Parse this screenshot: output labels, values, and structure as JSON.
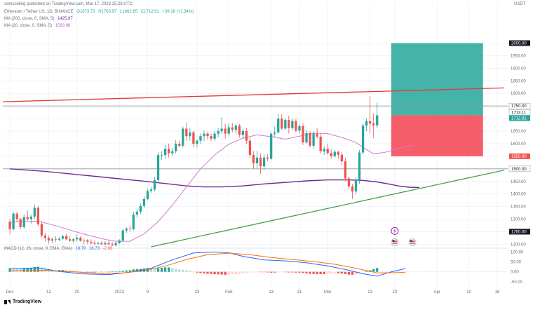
{
  "publisher": "samcooling published on TradingView.com, Mar 17, 2023 15:28 UTC",
  "symbol_line": {
    "symbol": "Ethereum / Tether US, 1D, BINANCE",
    "open": "O1673.73",
    "high": "H1763.97",
    "low": "L1662.65",
    "close": "C1712.91",
    "change": "+39.18 (+2.34%)"
  },
  "ma200_line": {
    "label": "MA (200, close, 0, SMA, 5)",
    "value": "1425.87"
  },
  "ma20_line": {
    "label": "MA (20, close, 0, SMA, 5)",
    "value": "1593.98"
  },
  "macd_line": {
    "label": "MACD (12, 26, close, 9, EMA, EMA)",
    "hist": "18.79",
    "macd": "16.73",
    "signal": "-2.06"
  },
  "currency": "USDT",
  "footer": "TradingView",
  "colors": {
    "up": "#26a69a",
    "down": "#ef5350",
    "ma200": "#6a2c91",
    "ma20": "#d17bd3",
    "macd": "#2962ff",
    "signal": "#ff6d00",
    "trend_red": "#e53935",
    "trend_green": "#43a047",
    "target_zone": "#26a69a",
    "stop_zone": "#f23645"
  },
  "chart_data": {
    "type": "candlestick",
    "series_name": "Ethereum / Tether US, 1D, BINANCE",
    "price_axis": {
      "ticks": [
        1200,
        1250,
        1300,
        1350,
        1400,
        1450,
        1500,
        1550,
        1600,
        1650,
        1700,
        1750,
        1800,
        1850,
        1900,
        1950,
        2000
      ],
      "tick_labels": [
        "1200.00",
        "1250.00",
        "1300.00",
        "1350.00",
        "1400.00",
        "1450.00",
        "1500.00",
        "1550.00",
        "1600.00",
        "1650.00",
        "1700.00",
        "1750.00",
        "1800.00",
        "1850.00",
        "1900.00",
        "1950.00",
        "2000.00"
      ],
      "range": [
        1190,
        2060
      ]
    },
    "time_axis": {
      "tick_labels": [
        "Dec",
        "12",
        "20",
        "2023",
        "9",
        "23",
        "Feb",
        "13",
        "21",
        "Mar",
        "13",
        "20",
        "Apr",
        "10",
        "18"
      ],
      "tick_days": [
        0,
        11,
        19,
        31,
        39,
        53,
        62,
        74,
        82,
        90,
        102,
        109,
        121,
        130,
        138
      ],
      "range_days": [
        -2,
        141
      ]
    },
    "price_labels": [
      {
        "value": 2000.0,
        "text": "2000.00",
        "style": "dark"
      },
      {
        "value": 1750.0,
        "text": "1750.00",
        "style": "light"
      },
      {
        "value": 1713.11,
        "text": "1713.11",
        "style": "light"
      },
      {
        "value": 1712.91,
        "text": "1712.91",
        "style": "up"
      },
      {
        "value": 1550.0,
        "text": "1550.00",
        "style": "down"
      },
      {
        "value": 1500.0,
        "text": "1500.00",
        "style": "light"
      },
      {
        "value": 1250.0,
        "text": "1250.00",
        "style": "dark"
      }
    ],
    "candles": [
      [
        1290,
        1300,
        1240,
        1260
      ],
      [
        1260,
        1330,
        1255,
        1322
      ],
      [
        1322,
        1330,
        1290,
        1300
      ],
      [
        1300,
        1305,
        1260,
        1268
      ],
      [
        1268,
        1318,
        1262,
        1308
      ],
      [
        1308,
        1335,
        1294,
        1300
      ],
      [
        1300,
        1318,
        1282,
        1310
      ],
      [
        1310,
        1358,
        1300,
        1345
      ],
      [
        1345,
        1352,
        1272,
        1280
      ],
      [
        1280,
        1290,
        1228,
        1235
      ],
      [
        1235,
        1245,
        1210,
        1225
      ],
      [
        1225,
        1232,
        1203,
        1215
      ],
      [
        1215,
        1228,
        1205,
        1220
      ],
      [
        1220,
        1232,
        1210,
        1218
      ],
      [
        1218,
        1228,
        1212,
        1222
      ],
      [
        1222,
        1238,
        1216,
        1232
      ],
      [
        1232,
        1240,
        1216,
        1220
      ],
      [
        1220,
        1232,
        1210,
        1214
      ],
      [
        1214,
        1225,
        1205,
        1220
      ],
      [
        1220,
        1240,
        1210,
        1226
      ],
      [
        1226,
        1232,
        1210,
        1214
      ],
      [
        1214,
        1222,
        1198,
        1216
      ],
      [
        1216,
        1222,
        1200,
        1210
      ],
      [
        1210,
        1220,
        1198,
        1205
      ],
      [
        1205,
        1215,
        1196,
        1202
      ],
      [
        1202,
        1210,
        1198,
        1204
      ],
      [
        1204,
        1212,
        1196,
        1200
      ],
      [
        1200,
        1212,
        1195,
        1205
      ],
      [
        1205,
        1215,
        1198,
        1200
      ],
      [
        1200,
        1210,
        1192,
        1196
      ],
      [
        1196,
        1210,
        1192,
        1205
      ],
      [
        1205,
        1220,
        1200,
        1215
      ],
      [
        1215,
        1262,
        1210,
        1255
      ],
      [
        1255,
        1268,
        1245,
        1262
      ],
      [
        1262,
        1275,
        1250,
        1260
      ],
      [
        1260,
        1330,
        1255,
        1318
      ],
      [
        1318,
        1340,
        1305,
        1330
      ],
      [
        1330,
        1362,
        1320,
        1352
      ],
      [
        1352,
        1390,
        1345,
        1380
      ],
      [
        1380,
        1420,
        1375,
        1412
      ],
      [
        1412,
        1428,
        1405,
        1418
      ],
      [
        1418,
        1468,
        1410,
        1455
      ],
      [
        1455,
        1565,
        1450,
        1555
      ],
      [
        1555,
        1570,
        1535,
        1555
      ],
      [
        1555,
        1595,
        1540,
        1580
      ],
      [
        1580,
        1600,
        1545,
        1562
      ],
      [
        1562,
        1582,
        1550,
        1570
      ],
      [
        1570,
        1615,
        1560,
        1600
      ],
      [
        1600,
        1612,
        1585,
        1592
      ],
      [
        1592,
        1668,
        1585,
        1660
      ],
      [
        1660,
        1685,
        1610,
        1630
      ],
      [
        1630,
        1662,
        1612,
        1645
      ],
      [
        1645,
        1652,
        1585,
        1600
      ],
      [
        1600,
        1618,
        1585,
        1612
      ],
      [
        1612,
        1640,
        1600,
        1630
      ],
      [
        1630,
        1652,
        1610,
        1640
      ],
      [
        1640,
        1648,
        1615,
        1630
      ],
      [
        1630,
        1640,
        1610,
        1620
      ],
      [
        1620,
        1650,
        1610,
        1640
      ],
      [
        1640,
        1662,
        1625,
        1650
      ],
      [
        1650,
        1705,
        1640,
        1660
      ],
      [
        1660,
        1678,
        1620,
        1640
      ],
      [
        1640,
        1680,
        1630,
        1665
      ],
      [
        1665,
        1682,
        1645,
        1655
      ],
      [
        1655,
        1680,
        1640,
        1672
      ],
      [
        1672,
        1678,
        1625,
        1635
      ],
      [
        1635,
        1660,
        1620,
        1650
      ],
      [
        1650,
        1662,
        1600,
        1612
      ],
      [
        1612,
        1625,
        1545,
        1555
      ],
      [
        1555,
        1570,
        1500,
        1522
      ],
      [
        1522,
        1572,
        1502,
        1545
      ],
      [
        1545,
        1562,
        1480,
        1510
      ],
      [
        1510,
        1560,
        1495,
        1545
      ],
      [
        1545,
        1560,
        1530,
        1540
      ],
      [
        1540,
        1648,
        1535,
        1640
      ],
      [
        1640,
        1668,
        1625,
        1645
      ],
      [
        1645,
        1720,
        1640,
        1700
      ],
      [
        1700,
        1718,
        1655,
        1660
      ],
      [
        1660,
        1702,
        1655,
        1695
      ],
      [
        1695,
        1712,
        1640,
        1662
      ],
      [
        1662,
        1700,
        1655,
        1690
      ],
      [
        1690,
        1698,
        1645,
        1652
      ],
      [
        1652,
        1678,
        1640,
        1670
      ],
      [
        1670,
        1680,
        1595,
        1605
      ],
      [
        1605,
        1655,
        1600,
        1642
      ],
      [
        1642,
        1650,
        1585,
        1592
      ],
      [
        1592,
        1650,
        1580,
        1640
      ],
      [
        1640,
        1662,
        1620,
        1628
      ],
      [
        1628,
        1642,
        1560,
        1570
      ],
      [
        1570,
        1590,
        1555,
        1580
      ],
      [
        1580,
        1600,
        1555,
        1563
      ],
      [
        1563,
        1578,
        1540,
        1550
      ],
      [
        1550,
        1575,
        1545,
        1568
      ],
      [
        1568,
        1572,
        1540,
        1556
      ],
      [
        1556,
        1568,
        1515,
        1530
      ],
      [
        1530,
        1545,
        1450,
        1462
      ],
      [
        1462,
        1470,
        1420,
        1430
      ],
      [
        1430,
        1440,
        1380,
        1410
      ],
      [
        1410,
        1465,
        1400,
        1455
      ],
      [
        1455,
        1575,
        1440,
        1565
      ],
      [
        1565,
        1680,
        1555,
        1672
      ],
      [
        1672,
        1700,
        1650,
        1690
      ],
      [
        1690,
        1790,
        1640,
        1680
      ],
      [
        1680,
        1720,
        1622,
        1673
      ],
      [
        1673,
        1764,
        1662,
        1713
      ]
    ],
    "ma200": {
      "name": "MA (200, close, 0, SMA, 5)",
      "points": [
        [
          0,
          1500
        ],
        [
          10,
          1490
        ],
        [
          20,
          1476
        ],
        [
          30,
          1462
        ],
        [
          38,
          1451
        ],
        [
          45,
          1440
        ],
        [
          50,
          1432
        ],
        [
          55,
          1428
        ],
        [
          60,
          1428
        ],
        [
          66,
          1432
        ],
        [
          72,
          1440
        ],
        [
          78,
          1446
        ],
        [
          84,
          1452
        ],
        [
          90,
          1456
        ],
        [
          96,
          1456
        ],
        [
          100,
          1454
        ],
        [
          104,
          1448
        ],
        [
          108,
          1438
        ],
        [
          110,
          1432
        ],
        [
          113,
          1427
        ],
        [
          116,
          1426
        ]
      ]
    },
    "ma20": {
      "name": "MA (20, close, 0, SMA, 5)",
      "points": [
        [
          0,
          1288
        ],
        [
          8,
          1292
        ],
        [
          14,
          1270
        ],
        [
          20,
          1244
        ],
        [
          26,
          1222
        ],
        [
          30,
          1212
        ],
        [
          34,
          1212
        ],
        [
          38,
          1242
        ],
        [
          42,
          1290
        ],
        [
          46,
          1355
        ],
        [
          50,
          1428
        ],
        [
          54,
          1500
        ],
        [
          58,
          1555
        ],
        [
          62,
          1598
        ],
        [
          66,
          1622
        ],
        [
          70,
          1635
        ],
        [
          74,
          1628
        ],
        [
          78,
          1618
        ],
        [
          82,
          1630
        ],
        [
          86,
          1642
        ],
        [
          90,
          1640
        ],
        [
          94,
          1625
        ],
        [
          98,
          1605
        ],
        [
          100,
          1585
        ],
        [
          103,
          1560
        ],
        [
          106,
          1565
        ],
        [
          110,
          1580
        ],
        [
          114,
          1594
        ]
      ]
    },
    "trendlines": [
      {
        "name": "resistance",
        "points": [
          [
            -2,
            1767
          ],
          [
            140,
            1822
          ]
        ]
      },
      {
        "name": "support",
        "points": [
          [
            40,
            1190
          ],
          [
            140,
            1495
          ]
        ]
      }
    ],
    "horizontal_lines": [
      1750,
      1500
    ],
    "position": {
      "entry": 1713.11,
      "target": 2000.0,
      "stop": 1550.0,
      "start_day": 108,
      "end_day": 134
    },
    "event_markers": [
      {
        "day": 109,
        "price": 1253,
        "icon": "lightning-icon"
      },
      {
        "day": 109,
        "price": 1208,
        "icon": "us-flag-icon"
      },
      {
        "day": 114,
        "price": 1208,
        "icon": "us-flag-icon"
      }
    ],
    "macd": {
      "axis_ticks": [
        100,
        50,
        0,
        -50
      ],
      "axis_labels": [
        "100.00",
        "50.00",
        "0.00",
        "-50.00"
      ],
      "range": [
        -72,
        112
      ],
      "hist": [
        18,
        17,
        16,
        15,
        16,
        18,
        20,
        24,
        25,
        22,
        18,
        14,
        11,
        9,
        9,
        9,
        8,
        7,
        6,
        4,
        3,
        1,
        -1,
        -2,
        -3,
        -2,
        -2,
        -1,
        0,
        1,
        2,
        3,
        5,
        7,
        8,
        12,
        14,
        15,
        16,
        19,
        18,
        15,
        18,
        20,
        22,
        22,
        20,
        16,
        12,
        10,
        8,
        5,
        0,
        -4,
        -6,
        -8,
        -10,
        -11,
        -12,
        -13,
        -14,
        -15,
        -14,
        -13,
        -12,
        -10,
        -8,
        -6,
        -4,
        -3,
        -2,
        -2,
        -2,
        -3,
        -4,
        -4,
        -3,
        -2,
        -2,
        -3,
        -3,
        -4,
        -4,
        -6,
        -8,
        -10,
        -11,
        -12,
        -12,
        -12,
        -10,
        -9,
        -8,
        -8,
        -9,
        -12,
        -14,
        -15,
        -13,
        -8,
        -2,
        3,
        8,
        14,
        19
      ],
      "macd_line": [
        [
          0,
          15
        ],
        [
          8,
          20
        ],
        [
          14,
          2
        ],
        [
          20,
          -10
        ],
        [
          28,
          -14
        ],
        [
          34,
          -2
        ],
        [
          40,
          18
        ],
        [
          46,
          60
        ],
        [
          52,
          95
        ],
        [
          58,
          100
        ],
        [
          62,
          96
        ],
        [
          66,
          78
        ],
        [
          72,
          60
        ],
        [
          78,
          55
        ],
        [
          84,
          46
        ],
        [
          90,
          30
        ],
        [
          96,
          8
        ],
        [
          100,
          -10
        ],
        [
          104,
          -22
        ],
        [
          108,
          0
        ],
        [
          112,
          16
        ]
      ],
      "signal_line": [
        [
          0,
          5
        ],
        [
          10,
          8
        ],
        [
          18,
          0
        ],
        [
          26,
          -8
        ],
        [
          32,
          -6
        ],
        [
          38,
          6
        ],
        [
          44,
          28
        ],
        [
          50,
          62
        ],
        [
          56,
          86
        ],
        [
          62,
          94
        ],
        [
          68,
          86
        ],
        [
          74,
          72
        ],
        [
          80,
          62
        ],
        [
          86,
          52
        ],
        [
          92,
          38
        ],
        [
          98,
          18
        ],
        [
          104,
          -6
        ],
        [
          110,
          -4
        ],
        [
          112,
          -2
        ]
      ]
    }
  }
}
